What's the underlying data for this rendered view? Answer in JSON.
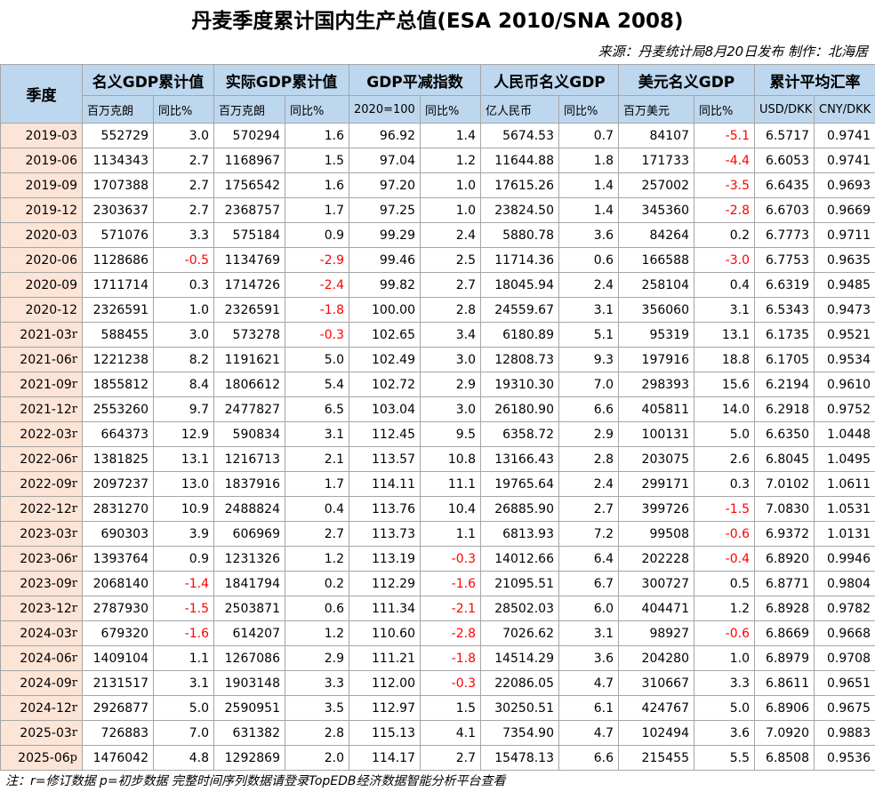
{
  "title": "丹麦季度累计国内生产总值(ESA 2010/SNA 2008)",
  "source": "来源：丹麦统计局8月20日发布 制作：北海居",
  "header": {
    "corner": "季度",
    "groups": [
      "名义GDP累计值",
      "实际GDP累计值",
      "GDP平减指数",
      "人民币名义GDP",
      "美元名义GDP",
      "累计平均汇率"
    ],
    "units": [
      "百万克朗",
      "同比%",
      "百万克朗",
      "同比%",
      "2020=100",
      "同比%",
      "亿人民币",
      "同比%",
      "百万美元",
      "同比%",
      "USD/DKK",
      "CNY/DKK"
    ]
  },
  "table": {
    "rows": [
      [
        "2019-03",
        null,
        "552729",
        "3.0",
        "570294",
        "1.6",
        "96.92",
        "1.4",
        "5674.53",
        "0.7",
        "84107",
        "-5.1",
        "6.5717",
        "0.9741"
      ],
      [
        "2019-06",
        null,
        "1134343",
        "2.7",
        "1168967",
        "1.5",
        "97.04",
        "1.2",
        "11644.88",
        "1.8",
        "171733",
        "-4.4",
        "6.6053",
        "0.9741"
      ],
      [
        "2019-09",
        null,
        "1707388",
        "2.7",
        "1756542",
        "1.6",
        "97.20",
        "1.0",
        "17615.26",
        "1.4",
        "257002",
        "-3.5",
        "6.6435",
        "0.9693"
      ],
      [
        "2019-12",
        null,
        "2303637",
        "2.7",
        "2368757",
        "1.7",
        "97.25",
        "1.0",
        "23824.50",
        "1.4",
        "345360",
        "-2.8",
        "6.6703",
        "0.9669"
      ],
      [
        "2020-03",
        null,
        "571076",
        "3.3",
        "575184",
        "0.9",
        "99.29",
        "2.4",
        "5880.78",
        "3.6",
        "84264",
        "0.2",
        "6.7773",
        "0.9711"
      ],
      [
        "2020-06",
        null,
        "1128686",
        "-0.5",
        "1134769",
        "-2.9",
        "99.46",
        "2.5",
        "11714.36",
        "0.6",
        "166588",
        "-3.0",
        "6.7753",
        "0.9635"
      ],
      [
        "2020-09",
        null,
        "1711714",
        "0.3",
        "1714726",
        "-2.4",
        "99.82",
        "2.7",
        "18045.94",
        "2.4",
        "258104",
        "0.4",
        "6.6319",
        "0.9485"
      ],
      [
        "2020-12",
        null,
        "2326591",
        "1.0",
        "2326591",
        "-1.8",
        "100.00",
        "2.8",
        "24559.67",
        "3.1",
        "356060",
        "3.1",
        "6.5343",
        "0.9473"
      ],
      [
        "2021-03",
        "r",
        "588455",
        "3.0",
        "573278",
        "-0.3",
        "102.65",
        "3.4",
        "6180.89",
        "5.1",
        "95319",
        "13.1",
        "6.1735",
        "0.9521"
      ],
      [
        "2021-06",
        "r",
        "1221238",
        "8.2",
        "1191621",
        "5.0",
        "102.49",
        "3.0",
        "12808.73",
        "9.3",
        "197916",
        "18.8",
        "6.1705",
        "0.9534"
      ],
      [
        "2021-09",
        "r",
        "1855812",
        "8.4",
        "1806612",
        "5.4",
        "102.72",
        "2.9",
        "19310.30",
        "7.0",
        "298393",
        "15.6",
        "6.2194",
        "0.9610"
      ],
      [
        "2021-12",
        "r",
        "2553260",
        "9.7",
        "2477827",
        "6.5",
        "103.04",
        "3.0",
        "26180.90",
        "6.6",
        "405811",
        "14.0",
        "6.2918",
        "0.9752"
      ],
      [
        "2022-03",
        "r",
        "664373",
        "12.9",
        "590834",
        "3.1",
        "112.45",
        "9.5",
        "6358.72",
        "2.9",
        "100131",
        "5.0",
        "6.6350",
        "1.0448"
      ],
      [
        "2022-06",
        "r",
        "1381825",
        "13.1",
        "1216713",
        "2.1",
        "113.57",
        "10.8",
        "13166.43",
        "2.8",
        "203075",
        "2.6",
        "6.8045",
        "1.0495"
      ],
      [
        "2022-09",
        "r",
        "2097237",
        "13.0",
        "1837916",
        "1.7",
        "114.11",
        "11.1",
        "19765.64",
        "2.4",
        "299171",
        "0.3",
        "7.0102",
        "1.0611"
      ],
      [
        "2022-12",
        "r",
        "2831270",
        "10.9",
        "2488824",
        "0.4",
        "113.76",
        "10.4",
        "26885.90",
        "2.7",
        "399726",
        "-1.5",
        "7.0830",
        "1.0531"
      ],
      [
        "2023-03",
        "r",
        "690303",
        "3.9",
        "606969",
        "2.7",
        "113.73",
        "1.1",
        "6813.93",
        "7.2",
        "99508",
        "-0.6",
        "6.9372",
        "1.0131"
      ],
      [
        "2023-06",
        "r",
        "1393764",
        "0.9",
        "1231326",
        "1.2",
        "113.19",
        "-0.3",
        "14012.66",
        "6.4",
        "202228",
        "-0.4",
        "6.8920",
        "0.9946"
      ],
      [
        "2023-09",
        "r",
        "2068140",
        "-1.4",
        "1841794",
        "0.2",
        "112.29",
        "-1.6",
        "21095.51",
        "6.7",
        "300727",
        "0.5",
        "6.8771",
        "0.9804"
      ],
      [
        "2023-12",
        "r",
        "2787930",
        "-1.5",
        "2503871",
        "0.6",
        "111.34",
        "-2.1",
        "28502.03",
        "6.0",
        "404471",
        "1.2",
        "6.8928",
        "0.9782"
      ],
      [
        "2024-03",
        "r",
        "679320",
        "-1.6",
        "614207",
        "1.2",
        "110.60",
        "-2.8",
        "7026.62",
        "3.1",
        "98927",
        "-0.6",
        "6.8669",
        "0.9668"
      ],
      [
        "2024-06",
        "r",
        "1409104",
        "1.1",
        "1267086",
        "2.9",
        "111.21",
        "-1.8",
        "14514.29",
        "3.6",
        "204280",
        "1.0",
        "6.8979",
        "0.9708"
      ],
      [
        "2024-09",
        "r",
        "2131517",
        "3.1",
        "1903148",
        "3.3",
        "112.00",
        "-0.3",
        "22086.05",
        "4.7",
        "310667",
        "3.3",
        "6.8611",
        "0.9651"
      ],
      [
        "2024-12",
        "r",
        "2926877",
        "5.0",
        "2590951",
        "3.5",
        "112.97",
        "1.5",
        "30250.51",
        "6.1",
        "424767",
        "5.0",
        "6.8906",
        "0.9675"
      ],
      [
        "2025-03",
        "r",
        "726883",
        "7.0",
        "631382",
        "2.8",
        "115.13",
        "4.1",
        "7354.90",
        "4.7",
        "102494",
        "3.6",
        "7.0920",
        "0.9883"
      ],
      [
        "2025-06",
        "p",
        "1476042",
        "4.8",
        "1292869",
        "2.0",
        "114.17",
        "2.7",
        "15478.13",
        "6.6",
        "215455",
        "5.5",
        "6.8508",
        "0.9536"
      ]
    ]
  },
  "footnote": "注：r=修订数据 p=初步数据 完整时间序列数据请登录TopEDB经济数据智能分析平台查看"
}
